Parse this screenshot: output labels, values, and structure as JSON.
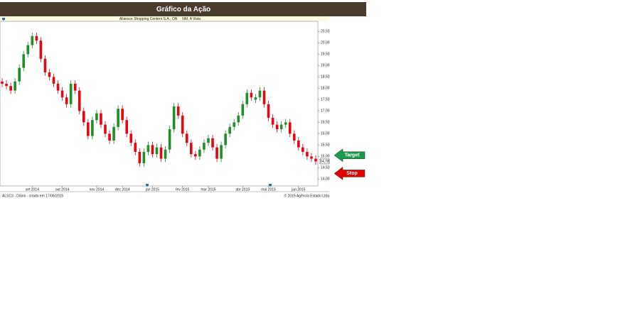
{
  "chart_data": {
    "type": "candlestick",
    "title": "Gráfico da Ação",
    "subtitle": "Aliansce Shopping Centers S.A., ON     NM, A Vista",
    "footer_left": "ALSC3 - Diário - criado em 17/06/2015",
    "footer_right": "© 2015 Agência Estado Ltda",
    "up_color": "#1f8f2a",
    "down_color": "#e30613",
    "open": [
      18.3,
      18.2,
      18.1,
      17.9,
      18.3,
      18.9,
      19.5,
      19.9,
      20.3,
      20.1,
      19.3,
      18.7,
      18.5,
      18.2,
      17.9,
      17.6,
      17.3,
      18.2,
      17.9,
      17.0,
      16.5,
      15.9,
      16.6,
      16.9,
      16.4,
      16.0,
      15.7,
      16.3,
      17.1,
      16.6,
      16.0,
      15.6,
      15.2,
      14.7,
      15.2,
      15.5,
      15.1,
      15.4,
      14.9,
      15.3,
      16.2,
      17.2,
      16.8,
      16.0,
      15.6,
      15.1,
      15.0,
      15.3,
      15.6,
      15.8,
      15.4,
      14.9,
      15.5,
      16.0,
      16.3,
      16.5,
      16.8,
      17.3,
      17.8,
      17.5,
      17.6,
      17.9,
      17.3,
      16.7,
      16.4,
      16.2,
      16.4,
      16.5,
      16.0,
      15.7,
      15.4,
      15.2,
      15.0,
      14.9
    ],
    "high": [
      18.45,
      18.35,
      18.25,
      18.45,
      19.05,
      19.65,
      20.05,
      20.45,
      20.45,
      20.25,
      19.45,
      18.85,
      18.65,
      18.35,
      18.05,
      17.75,
      18.35,
      18.35,
      18.05,
      17.15,
      16.65,
      16.75,
      17.05,
      17.05,
      16.55,
      16.15,
      16.45,
      17.25,
      17.25,
      16.75,
      16.15,
      15.75,
      15.35,
      15.35,
      15.65,
      15.65,
      15.55,
      15.55,
      15.45,
      16.35,
      17.35,
      17.35,
      16.95,
      16.15,
      15.75,
      15.25,
      15.45,
      15.75,
      15.95,
      15.95,
      15.55,
      15.65,
      16.15,
      16.45,
      16.65,
      16.95,
      17.45,
      17.95,
      17.95,
      17.75,
      18.05,
      18.05,
      17.45,
      16.85,
      16.55,
      16.55,
      16.65,
      16.65,
      16.15,
      15.85,
      15.55,
      15.35,
      15.15,
      15.05
    ],
    "low": [
      18.05,
      17.95,
      17.75,
      17.75,
      18.15,
      18.75,
      19.35,
      19.75,
      19.95,
      19.15,
      18.55,
      18.35,
      18.05,
      17.75,
      17.45,
      17.15,
      17.15,
      17.75,
      16.85,
      16.35,
      15.75,
      15.75,
      16.45,
      16.25,
      15.85,
      15.55,
      15.55,
      16.15,
      16.45,
      15.85,
      15.45,
      15.05,
      14.55,
      14.55,
      15.05,
      14.95,
      14.95,
      14.75,
      14.75,
      15.15,
      16.05,
      16.65,
      15.85,
      15.45,
      14.95,
      14.85,
      14.85,
      15.15,
      15.45,
      15.25,
      14.75,
      14.75,
      15.35,
      15.85,
      16.15,
      16.35,
      16.65,
      17.15,
      17.45,
      17.35,
      17.45,
      17.15,
      16.55,
      16.25,
      16.05,
      16.05,
      16.25,
      15.85,
      15.55,
      15.25,
      15.05,
      14.85,
      14.75,
      14.63
    ],
    "close": [
      18.2,
      18.1,
      17.9,
      18.3,
      18.9,
      19.5,
      19.9,
      20.3,
      20.1,
      19.3,
      18.7,
      18.5,
      18.2,
      17.9,
      17.6,
      17.3,
      18.2,
      17.9,
      17.0,
      16.5,
      15.9,
      16.6,
      16.9,
      16.4,
      16.0,
      15.7,
      16.3,
      17.1,
      16.6,
      16.0,
      15.6,
      15.2,
      14.7,
      15.2,
      15.5,
      15.1,
      15.4,
      14.9,
      15.3,
      16.2,
      17.2,
      16.8,
      16.0,
      15.6,
      15.1,
      15.0,
      15.3,
      15.6,
      15.8,
      15.4,
      14.9,
      15.5,
      16.0,
      16.3,
      16.5,
      16.8,
      17.3,
      17.8,
      17.6,
      17.6,
      17.9,
      17.3,
      16.7,
      16.4,
      16.2,
      16.4,
      16.5,
      16.0,
      15.7,
      15.4,
      15.2,
      15.0,
      14.9,
      14.78
    ],
    "last_price": {
      "value": 14.78,
      "label": "14,78"
    },
    "xlim": [
      -0.5,
      73.5
    ],
    "xticks": [
      {
        "value": 7,
        "label": "set 2014"
      },
      {
        "value": 14,
        "label": "out 2014"
      },
      {
        "value": 22,
        "label": "nov 2014"
      },
      {
        "value": 28,
        "label": "dez 2014"
      },
      {
        "value": 35,
        "label": "jan 2015"
      },
      {
        "value": 42,
        "label": "fev 2015"
      },
      {
        "value": 48,
        "label": "mar 2015"
      },
      {
        "value": 56,
        "label": "abr 2015"
      },
      {
        "value": 62,
        "label": "mai 2015"
      },
      {
        "value": 69,
        "label": "jun 2015"
      }
    ],
    "ylim": [
      13.7,
      20.95
    ],
    "yticks": [
      {
        "value": 14,
        "label": "14,00"
      },
      {
        "value": 14.5,
        "label": "14,50"
      },
      {
        "value": 15,
        "label": "15,00"
      },
      {
        "value": 15.5,
        "label": "15,50"
      },
      {
        "value": 16,
        "label": "16,00"
      },
      {
        "value": 16.5,
        "label": "16,50"
      },
      {
        "value": 17,
        "label": "17,00"
      },
      {
        "value": 17.5,
        "label": "17,50"
      },
      {
        "value": 18,
        "label": "18,00"
      },
      {
        "value": 18.5,
        "label": "18,50"
      },
      {
        "value": 19,
        "label": "19,00"
      },
      {
        "value": 19.5,
        "label": "19,50"
      },
      {
        "value": 20,
        "label": "20,00"
      },
      {
        "value": 20.5,
        "label": "20,50"
      }
    ],
    "annotations": [
      {
        "text": "Target",
        "value": 15.05,
        "color": "#1a9a4a"
      },
      {
        "text": "Stop",
        "value": 14.25,
        "color": "#e00000"
      }
    ]
  }
}
